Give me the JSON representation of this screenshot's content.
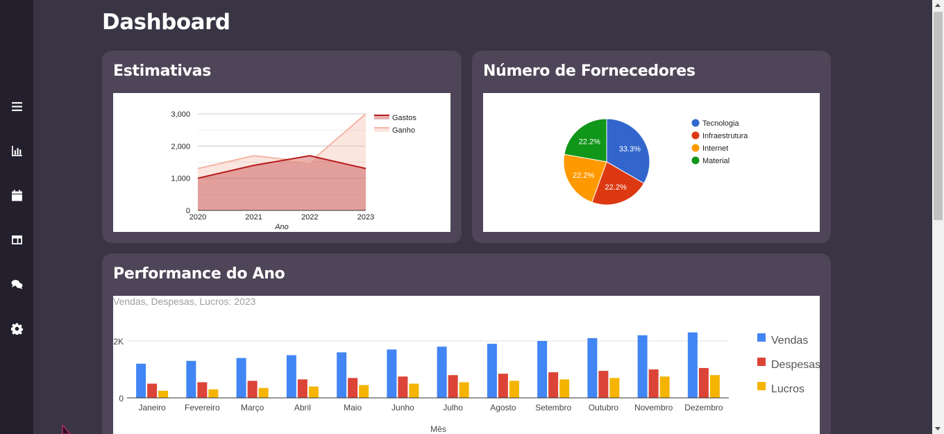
{
  "sidebar": {
    "items": [
      {
        "icon": "menu-icon"
      },
      {
        "icon": "bar-chart-icon"
      },
      {
        "icon": "calendar-icon"
      },
      {
        "icon": "layout-icon"
      },
      {
        "icon": "chat-icon"
      },
      {
        "icon": "gear-icon"
      }
    ]
  },
  "page": {
    "title": "Dashboard"
  },
  "cards": {
    "estimativas": {
      "title": "Estimativas"
    },
    "fornecedores": {
      "title": "Número de Fornecedores"
    },
    "performance": {
      "title": "Performance do Ano"
    }
  },
  "chart_data": [
    {
      "type": "area",
      "title": "",
      "xlabel": "Ano",
      "ylabel": "",
      "x": [
        "2020",
        "2021",
        "2022",
        "2023"
      ],
      "ylim": [
        0,
        3000
      ],
      "yticks": [
        "0",
        "1,000",
        "2,000",
        "3,000"
      ],
      "series": [
        {
          "name": "Gastos",
          "values": [
            1000,
            1400,
            1700,
            1300
          ],
          "color": "#b71c1c"
        },
        {
          "name": "Ganho",
          "values": [
            1300,
            1700,
            1500,
            3000
          ],
          "color": "#f4b4a4"
        }
      ],
      "legend": "right"
    },
    {
      "type": "pie",
      "title": "",
      "slices": [
        {
          "name": "Tecnologia",
          "value": 33.3,
          "label": "33.3%",
          "color": "#3366cc"
        },
        {
          "name": "Infraestrutura",
          "value": 22.2,
          "label": "22.2%",
          "color": "#dc3912"
        },
        {
          "name": "Internet",
          "value": 22.2,
          "label": "22.2%",
          "color": "#ff9900"
        },
        {
          "name": "Material",
          "value": 22.2,
          "label": "22.2%",
          "color": "#109618"
        }
      ],
      "legend": "right"
    },
    {
      "type": "bar",
      "title": "Vendas, Despesas, Lucros: 2023",
      "xlabel": "Mês",
      "ylabel": "",
      "ylim": [
        0,
        2500
      ],
      "yticks": [
        "0",
        "2K"
      ],
      "categories": [
        "Janeiro",
        "Fevereiro",
        "Março",
        "Abril",
        "Maio",
        "Junho",
        "Julho",
        "Agosto",
        "Setembro",
        "Outubro",
        "Novembro",
        "Dezembro"
      ],
      "series": [
        {
          "name": "Vendas",
          "color": "#4285f4",
          "values": [
            1200,
            1300,
            1400,
            1500,
            1600,
            1700,
            1800,
            1900,
            2000,
            2100,
            2200,
            2300
          ]
        },
        {
          "name": "Despesas",
          "color": "#db4437",
          "values": [
            500,
            550,
            600,
            650,
            700,
            750,
            800,
            850,
            900,
            950,
            1000,
            1050
          ]
        },
        {
          "name": "Lucros",
          "color": "#f4b400",
          "values": [
            250,
            300,
            350,
            400,
            450,
            500,
            550,
            600,
            650,
            700,
            750,
            800
          ]
        }
      ],
      "legend": "right"
    }
  ]
}
